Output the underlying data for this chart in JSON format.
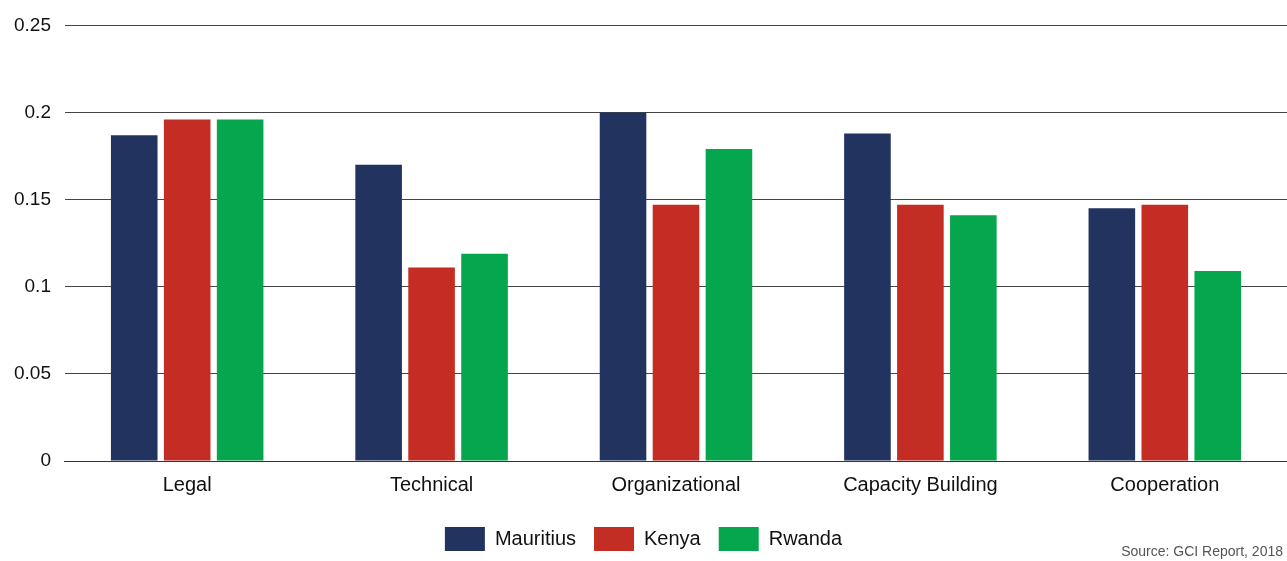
{
  "chart_data": {
    "type": "bar",
    "categories": [
      "Legal",
      "Technical",
      "Organizational",
      "Capacity Building",
      "Cooperation"
    ],
    "series": [
      {
        "name": "Mauritius",
        "color": "#22335f",
        "values": [
          0.187,
          0.17,
          0.2,
          0.188,
          0.145
        ]
      },
      {
        "name": "Kenya",
        "color": "#c42d23",
        "values": [
          0.196,
          0.111,
          0.147,
          0.147,
          0.147
        ]
      },
      {
        "name": "Rwanda",
        "color": "#05a64d",
        "values": [
          0.196,
          0.119,
          0.179,
          0.141,
          0.109
        ]
      }
    ],
    "ylim": [
      0,
      0.25
    ],
    "yticks": [
      0,
      0.05,
      0.1,
      0.15,
      0.2,
      0.25
    ],
    "grid": "y",
    "legend": "bottom",
    "annotations": [
      "Source: GCI Report, 2018"
    ]
  }
}
